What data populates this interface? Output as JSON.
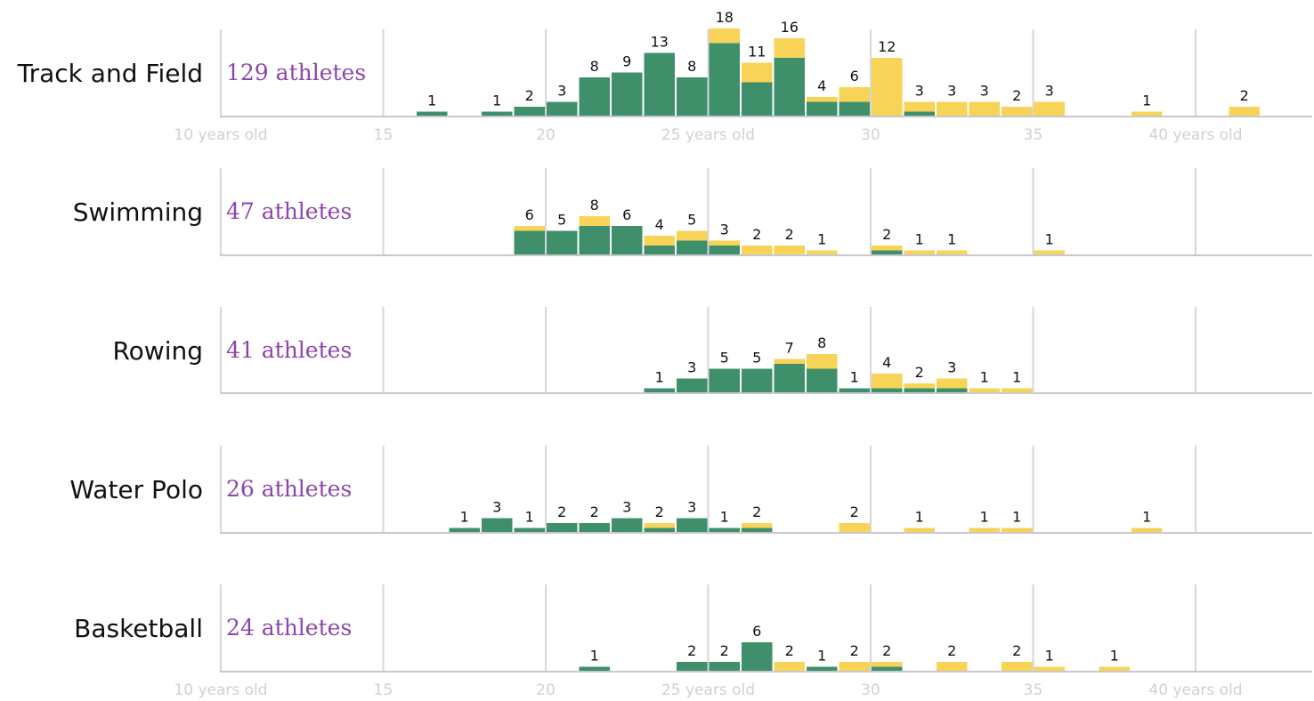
{
  "colors": {
    "green": "#3f8f6b",
    "yellow": "#f7d358",
    "purple": "#8e44ad",
    "grid": "#d6d6dc",
    "tick": "#d0d0d6"
  },
  "chart_data": {
    "type": "bar",
    "stacked": true,
    "series_colors": [
      "green",
      "yellow"
    ],
    "x_ticks": [
      {
        "value": 10,
        "label": "10 years old"
      },
      {
        "value": 15,
        "label": "15"
      },
      {
        "value": 20,
        "label": "20"
      },
      {
        "value": 25,
        "label": "25 years old"
      },
      {
        "value": 30,
        "label": "30"
      },
      {
        "value": 35,
        "label": "35"
      },
      {
        "value": 40,
        "label": "40 years old"
      }
    ],
    "xlim": [
      10,
      43.5
    ],
    "grid": true,
    "panels": [
      {
        "sport": "Track and Field",
        "count_label": "129 athletes",
        "ymax": 18,
        "show_ticks": true,
        "bins": [
          {
            "age": 16,
            "green": 1,
            "yellow": 0,
            "total": 1
          },
          {
            "age": 18,
            "green": 1,
            "yellow": 0,
            "total": 1
          },
          {
            "age": 19,
            "green": 2,
            "yellow": 0,
            "total": 2
          },
          {
            "age": 20,
            "green": 3,
            "yellow": 0,
            "total": 3
          },
          {
            "age": 21,
            "green": 8,
            "yellow": 0,
            "total": 8
          },
          {
            "age": 22,
            "green": 9,
            "yellow": 0,
            "total": 9
          },
          {
            "age": 23,
            "green": 13,
            "yellow": 0,
            "total": 13
          },
          {
            "age": 24,
            "green": 8,
            "yellow": 0,
            "total": 8
          },
          {
            "age": 25,
            "green": 15,
            "yellow": 3,
            "total": 18
          },
          {
            "age": 26,
            "green": 7,
            "yellow": 4,
            "total": 11
          },
          {
            "age": 27,
            "green": 12,
            "yellow": 4,
            "total": 16
          },
          {
            "age": 28,
            "green": 3,
            "yellow": 1,
            "total": 4
          },
          {
            "age": 29,
            "green": 3,
            "yellow": 3,
            "total": 6
          },
          {
            "age": 30,
            "green": 0,
            "yellow": 12,
            "total": 12
          },
          {
            "age": 31,
            "green": 1,
            "yellow": 2,
            "total": 3
          },
          {
            "age": 32,
            "green": 0,
            "yellow": 3,
            "total": 3
          },
          {
            "age": 33,
            "green": 0,
            "yellow": 3,
            "total": 3
          },
          {
            "age": 34,
            "green": 0,
            "yellow": 2,
            "total": 2
          },
          {
            "age": 35,
            "green": 0,
            "yellow": 3,
            "total": 3
          },
          {
            "age": 38,
            "green": 0,
            "yellow": 1,
            "total": 1
          },
          {
            "age": 41,
            "green": 0,
            "yellow": 2,
            "total": 2
          }
        ]
      },
      {
        "sport": "Swimming",
        "count_label": "47 athletes",
        "ymax": 18,
        "show_ticks": false,
        "bins": [
          {
            "age": 19,
            "green": 5,
            "yellow": 1,
            "total": 6
          },
          {
            "age": 20,
            "green": 5,
            "yellow": 0,
            "total": 5
          },
          {
            "age": 21,
            "green": 6,
            "yellow": 2,
            "total": 8
          },
          {
            "age": 22,
            "green": 6,
            "yellow": 0,
            "total": 6
          },
          {
            "age": 23,
            "green": 2,
            "yellow": 2,
            "total": 4
          },
          {
            "age": 24,
            "green": 3,
            "yellow": 2,
            "total": 5
          },
          {
            "age": 25,
            "green": 2,
            "yellow": 1,
            "total": 3
          },
          {
            "age": 26,
            "green": 0,
            "yellow": 2,
            "total": 2
          },
          {
            "age": 27,
            "green": 0,
            "yellow": 2,
            "total": 2
          },
          {
            "age": 28,
            "green": 0,
            "yellow": 1,
            "total": 1
          },
          {
            "age": 30,
            "green": 1,
            "yellow": 1,
            "total": 2
          },
          {
            "age": 31,
            "green": 0,
            "yellow": 1,
            "total": 1
          },
          {
            "age": 32,
            "green": 0,
            "yellow": 1,
            "total": 1
          },
          {
            "age": 35,
            "green": 0,
            "yellow": 1,
            "total": 1
          }
        ]
      },
      {
        "sport": "Rowing",
        "count_label": "41 athletes",
        "ymax": 18,
        "show_ticks": false,
        "bins": [
          {
            "age": 23,
            "green": 1,
            "yellow": 0,
            "total": 1
          },
          {
            "age": 24,
            "green": 3,
            "yellow": 0,
            "total": 3
          },
          {
            "age": 25,
            "green": 5,
            "yellow": 0,
            "total": 5
          },
          {
            "age": 26,
            "green": 5,
            "yellow": 0,
            "total": 5
          },
          {
            "age": 27,
            "green": 6,
            "yellow": 1,
            "total": 7
          },
          {
            "age": 28,
            "green": 5,
            "yellow": 3,
            "total": 8
          },
          {
            "age": 29,
            "green": 1,
            "yellow": 0,
            "total": 1
          },
          {
            "age": 30,
            "green": 1,
            "yellow": 3,
            "total": 4
          },
          {
            "age": 31,
            "green": 1,
            "yellow": 1,
            "total": 2
          },
          {
            "age": 32,
            "green": 1,
            "yellow": 2,
            "total": 3
          },
          {
            "age": 33,
            "green": 0,
            "yellow": 1,
            "total": 1
          },
          {
            "age": 34,
            "green": 0,
            "yellow": 1,
            "total": 1
          }
        ]
      },
      {
        "sport": "Water Polo",
        "count_label": "26 athletes",
        "ymax": 18,
        "show_ticks": false,
        "bins": [
          {
            "age": 17,
            "green": 1,
            "yellow": 0,
            "total": 1
          },
          {
            "age": 18,
            "green": 3,
            "yellow": 0,
            "total": 3
          },
          {
            "age": 19,
            "green": 1,
            "yellow": 0,
            "total": 1
          },
          {
            "age": 20,
            "green": 2,
            "yellow": 0,
            "total": 2
          },
          {
            "age": 21,
            "green": 2,
            "yellow": 0,
            "total": 2
          },
          {
            "age": 22,
            "green": 3,
            "yellow": 0,
            "total": 3
          },
          {
            "age": 23,
            "green": 1,
            "yellow": 1,
            "total": 2
          },
          {
            "age": 24,
            "green": 3,
            "yellow": 0,
            "total": 3
          },
          {
            "age": 25,
            "green": 1,
            "yellow": 0,
            "total": 1
          },
          {
            "age": 26,
            "green": 1,
            "yellow": 1,
            "total": 2
          },
          {
            "age": 29,
            "green": 0,
            "yellow": 2,
            "total": 2
          },
          {
            "age": 31,
            "green": 0,
            "yellow": 1,
            "total": 1
          },
          {
            "age": 33,
            "green": 0,
            "yellow": 1,
            "total": 1
          },
          {
            "age": 34,
            "green": 0,
            "yellow": 1,
            "total": 1
          },
          {
            "age": 38,
            "green": 0,
            "yellow": 1,
            "total": 1
          }
        ]
      },
      {
        "sport": "Basketball",
        "count_label": "24 athletes",
        "ymax": 18,
        "show_ticks": true,
        "bins": [
          {
            "age": 21,
            "green": 1,
            "yellow": 0,
            "total": 1
          },
          {
            "age": 24,
            "green": 2,
            "yellow": 0,
            "total": 2
          },
          {
            "age": 25,
            "green": 2,
            "yellow": 0,
            "total": 2
          },
          {
            "age": 26,
            "green": 6,
            "yellow": 0,
            "total": 6
          },
          {
            "age": 27,
            "green": 0,
            "yellow": 2,
            "total": 2
          },
          {
            "age": 28,
            "green": 1,
            "yellow": 0,
            "total": 1
          },
          {
            "age": 29,
            "green": 0,
            "yellow": 2,
            "total": 2
          },
          {
            "age": 30,
            "green": 1,
            "yellow": 1,
            "total": 2
          },
          {
            "age": 32,
            "green": 0,
            "yellow": 2,
            "total": 2
          },
          {
            "age": 34,
            "green": 0,
            "yellow": 2,
            "total": 2
          },
          {
            "age": 35,
            "green": 0,
            "yellow": 1,
            "total": 1
          },
          {
            "age": 37,
            "green": 0,
            "yellow": 1,
            "total": 1
          }
        ]
      }
    ]
  }
}
